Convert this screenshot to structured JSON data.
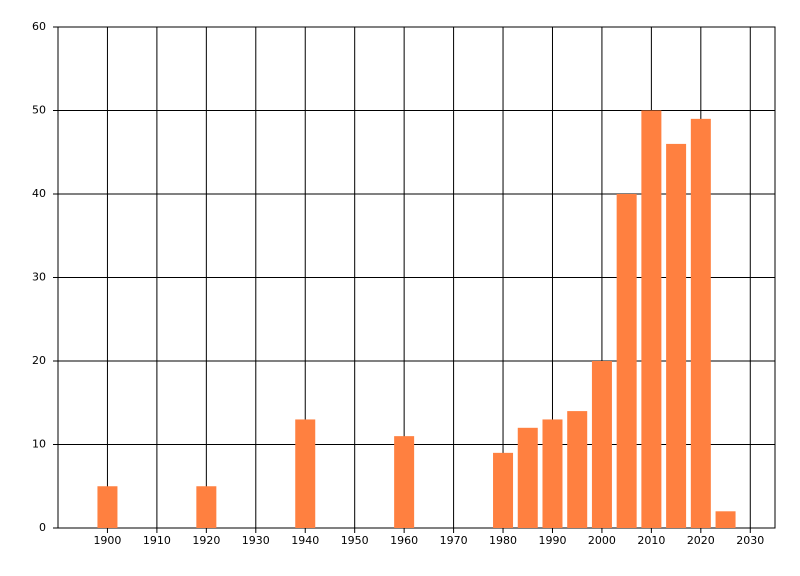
{
  "chart_data": {
    "type": "bar",
    "x": [
      1900,
      1920,
      1940,
      1960,
      1980,
      1985,
      1990,
      1995,
      2000,
      2005,
      2010,
      2015,
      2020,
      2025
    ],
    "values": [
      5,
      5,
      13,
      11,
      9,
      12,
      13,
      14,
      20,
      40,
      50,
      46,
      49,
      2
    ],
    "color": "#ff8040",
    "xlim": [
      1890,
      2035
    ],
    "xticks": [
      1900,
      1910,
      1920,
      1930,
      1940,
      1950,
      1960,
      1970,
      1980,
      1990,
      2000,
      2010,
      2020,
      2030
    ],
    "ylim": [
      0,
      60
    ],
    "yticks": [
      0,
      10,
      20,
      30,
      40,
      50,
      60
    ],
    "grid": true
  }
}
